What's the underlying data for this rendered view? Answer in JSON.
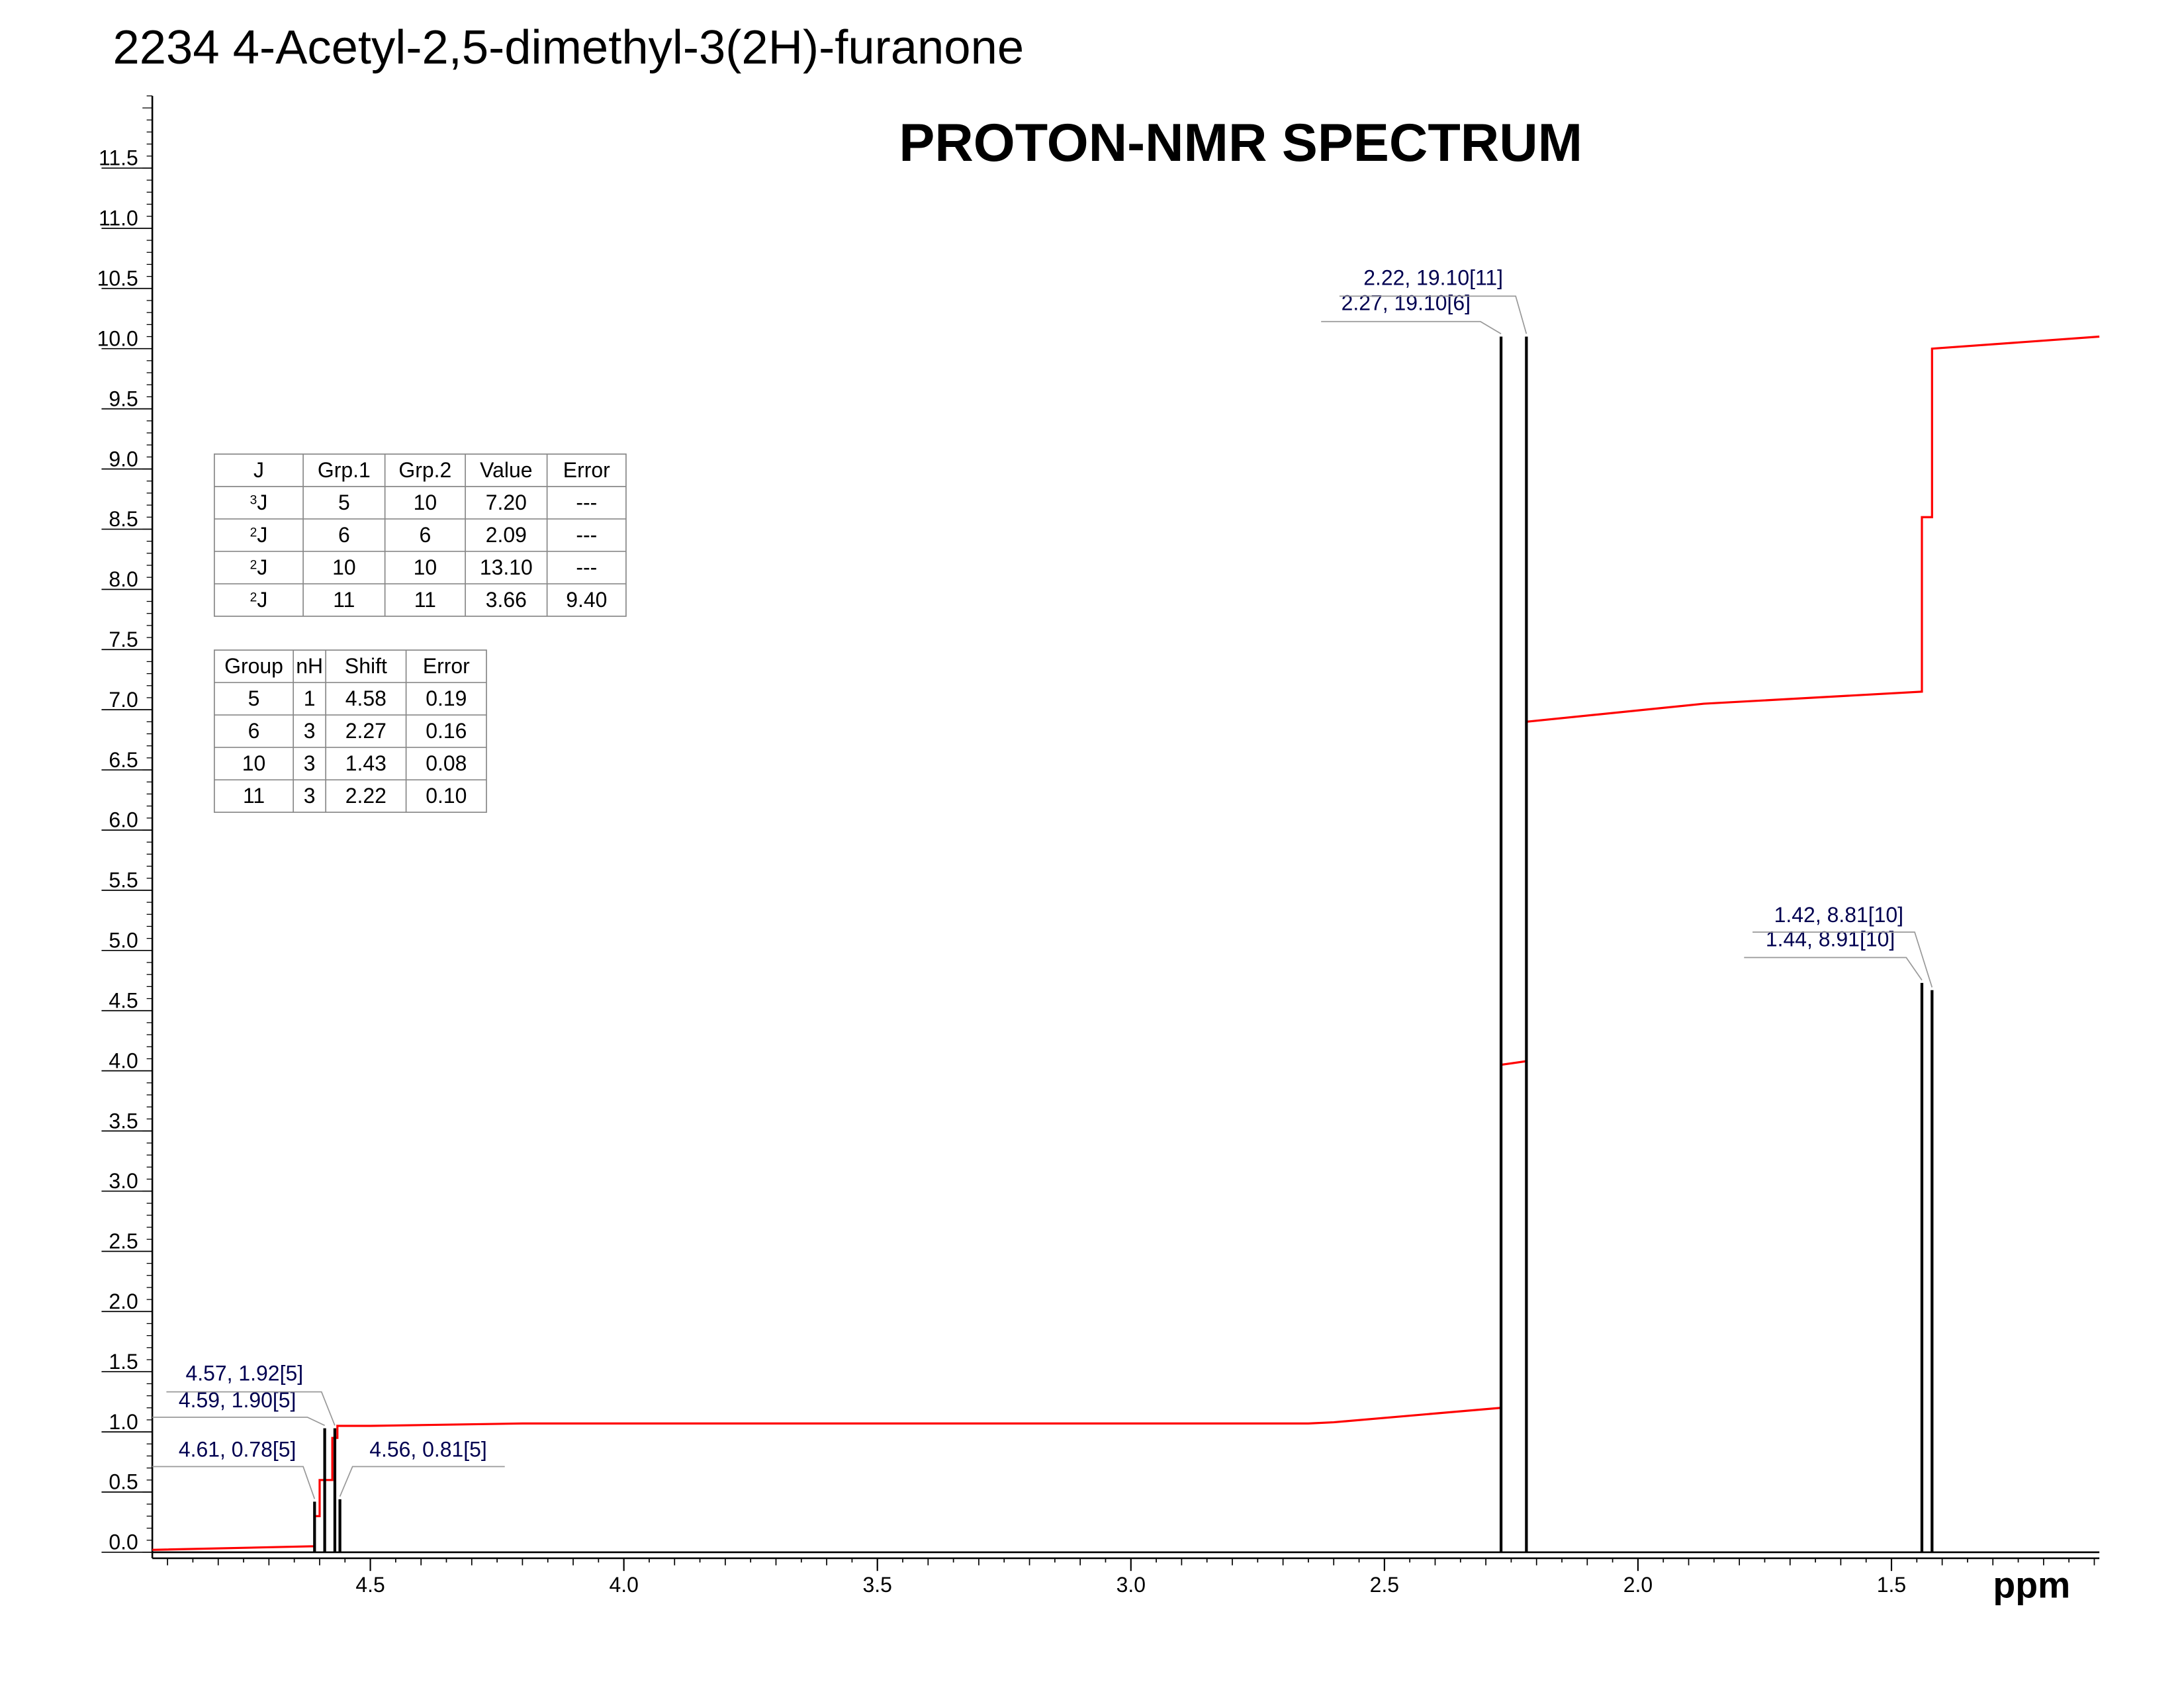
{
  "title": "2234  4-Acetyl-2,5-dimethyl-3(2H)-furanone",
  "chart_data": {
    "type": "spectrum",
    "title": "PROTON-NMR SPECTRUM",
    "x_label": "ppm",
    "xlim": [
      4.93,
      1.09
    ],
    "ylim": [
      -0.05,
      12.1
    ],
    "x_minor_step": 0.05,
    "y_minor_step": 0.1,
    "xticks": [
      4.5,
      {
        "value": 4,
        "label": "4.0"
      },
      3.5,
      {
        "value": 3,
        "label": "3.0"
      },
      2.5,
      {
        "value": 2,
        "label": "2.0"
      },
      1.5
    ],
    "yticks": [
      {
        "value": 0,
        "label": "0.0"
      },
      0.5,
      {
        "value": 1,
        "label": "1.0"
      },
      1.5,
      {
        "value": 2,
        "label": "2.0"
      },
      2.5,
      {
        "value": 3,
        "label": "3.0"
      },
      3.5,
      {
        "value": 4,
        "label": "4.0"
      },
      4.5,
      {
        "value": 5,
        "label": "5.0"
      },
      5.5,
      {
        "value": 6,
        "label": "6.0"
      },
      6.5,
      {
        "value": 7,
        "label": "7.0"
      },
      7.5,
      {
        "value": 8,
        "label": "8.0"
      },
      8.5,
      {
        "value": 9,
        "label": "9.0"
      },
      9.5,
      {
        "value": 10,
        "label": "10.0"
      },
      10.5,
      {
        "value": 11,
        "label": "11.0"
      },
      11.5
    ],
    "peaks": {
      "color": "#000000",
      "x": [
        4.61,
        4.59,
        4.57,
        4.56,
        2.27,
        2.22,
        1.44,
        1.42
      ],
      "y": [
        0.42,
        1.03,
        1.03,
        0.44,
        10.1,
        10.1,
        4.73,
        4.67
      ],
      "labels": [
        "4.61, 0.78[5]",
        "4.59, 1.90[5]",
        "4.57, 1.92[5]",
        "4.56, 0.81[5]",
        "2.27, 19.10[6]",
        "2.22, 19.10[11]",
        "1.44, 8.91[10]",
        "1.42, 8.81[10]"
      ]
    },
    "integral": {
      "color": "#ff0000",
      "x": [
        4.93,
        4.61,
        4.61,
        4.6,
        4.6,
        4.575,
        4.575,
        4.565,
        4.565,
        4.5,
        4.2,
        2.65,
        2.6,
        2.27,
        2.27,
        2.22,
        2.22,
        1.87,
        1.44,
        1.44,
        1.42,
        1.42,
        1.09
      ],
      "y": [
        0.02,
        0.05,
        0.3,
        0.3,
        0.6,
        0.6,
        0.95,
        0.95,
        1.05,
        1.05,
        1.07,
        1.07,
        1.08,
        1.2,
        4.05,
        4.08,
        6.9,
        7.05,
        7.15,
        8.6,
        8.6,
        10.0,
        10.1
      ]
    }
  },
  "coupling_table": {
    "header": [
      "J",
      "Grp.1",
      "Grp.2",
      "Value",
      "Error"
    ],
    "rows": [
      [
        {
          "sup": "3",
          "base": "J"
        },
        "5",
        "10",
        "7.20",
        "---"
      ],
      [
        {
          "sup": "2",
          "base": "J"
        },
        "6",
        "6",
        "2.09",
        "---"
      ],
      [
        {
          "sup": "2",
          "base": "J"
        },
        "10",
        "10",
        "13.10",
        "---"
      ],
      [
        {
          "sup": "2",
          "base": "J"
        },
        "11",
        "11",
        "3.66",
        "9.40"
      ]
    ]
  },
  "shift_table": {
    "header": [
      "Group",
      "nH",
      "Shift",
      "Error"
    ],
    "rows": [
      [
        "5",
        "1",
        "4.58",
        "0.19"
      ],
      [
        "6",
        "3",
        "2.27",
        "0.16"
      ],
      [
        "10",
        "3",
        "1.43",
        "0.08"
      ],
      [
        "11",
        "3",
        "2.22",
        "0.10"
      ]
    ]
  }
}
